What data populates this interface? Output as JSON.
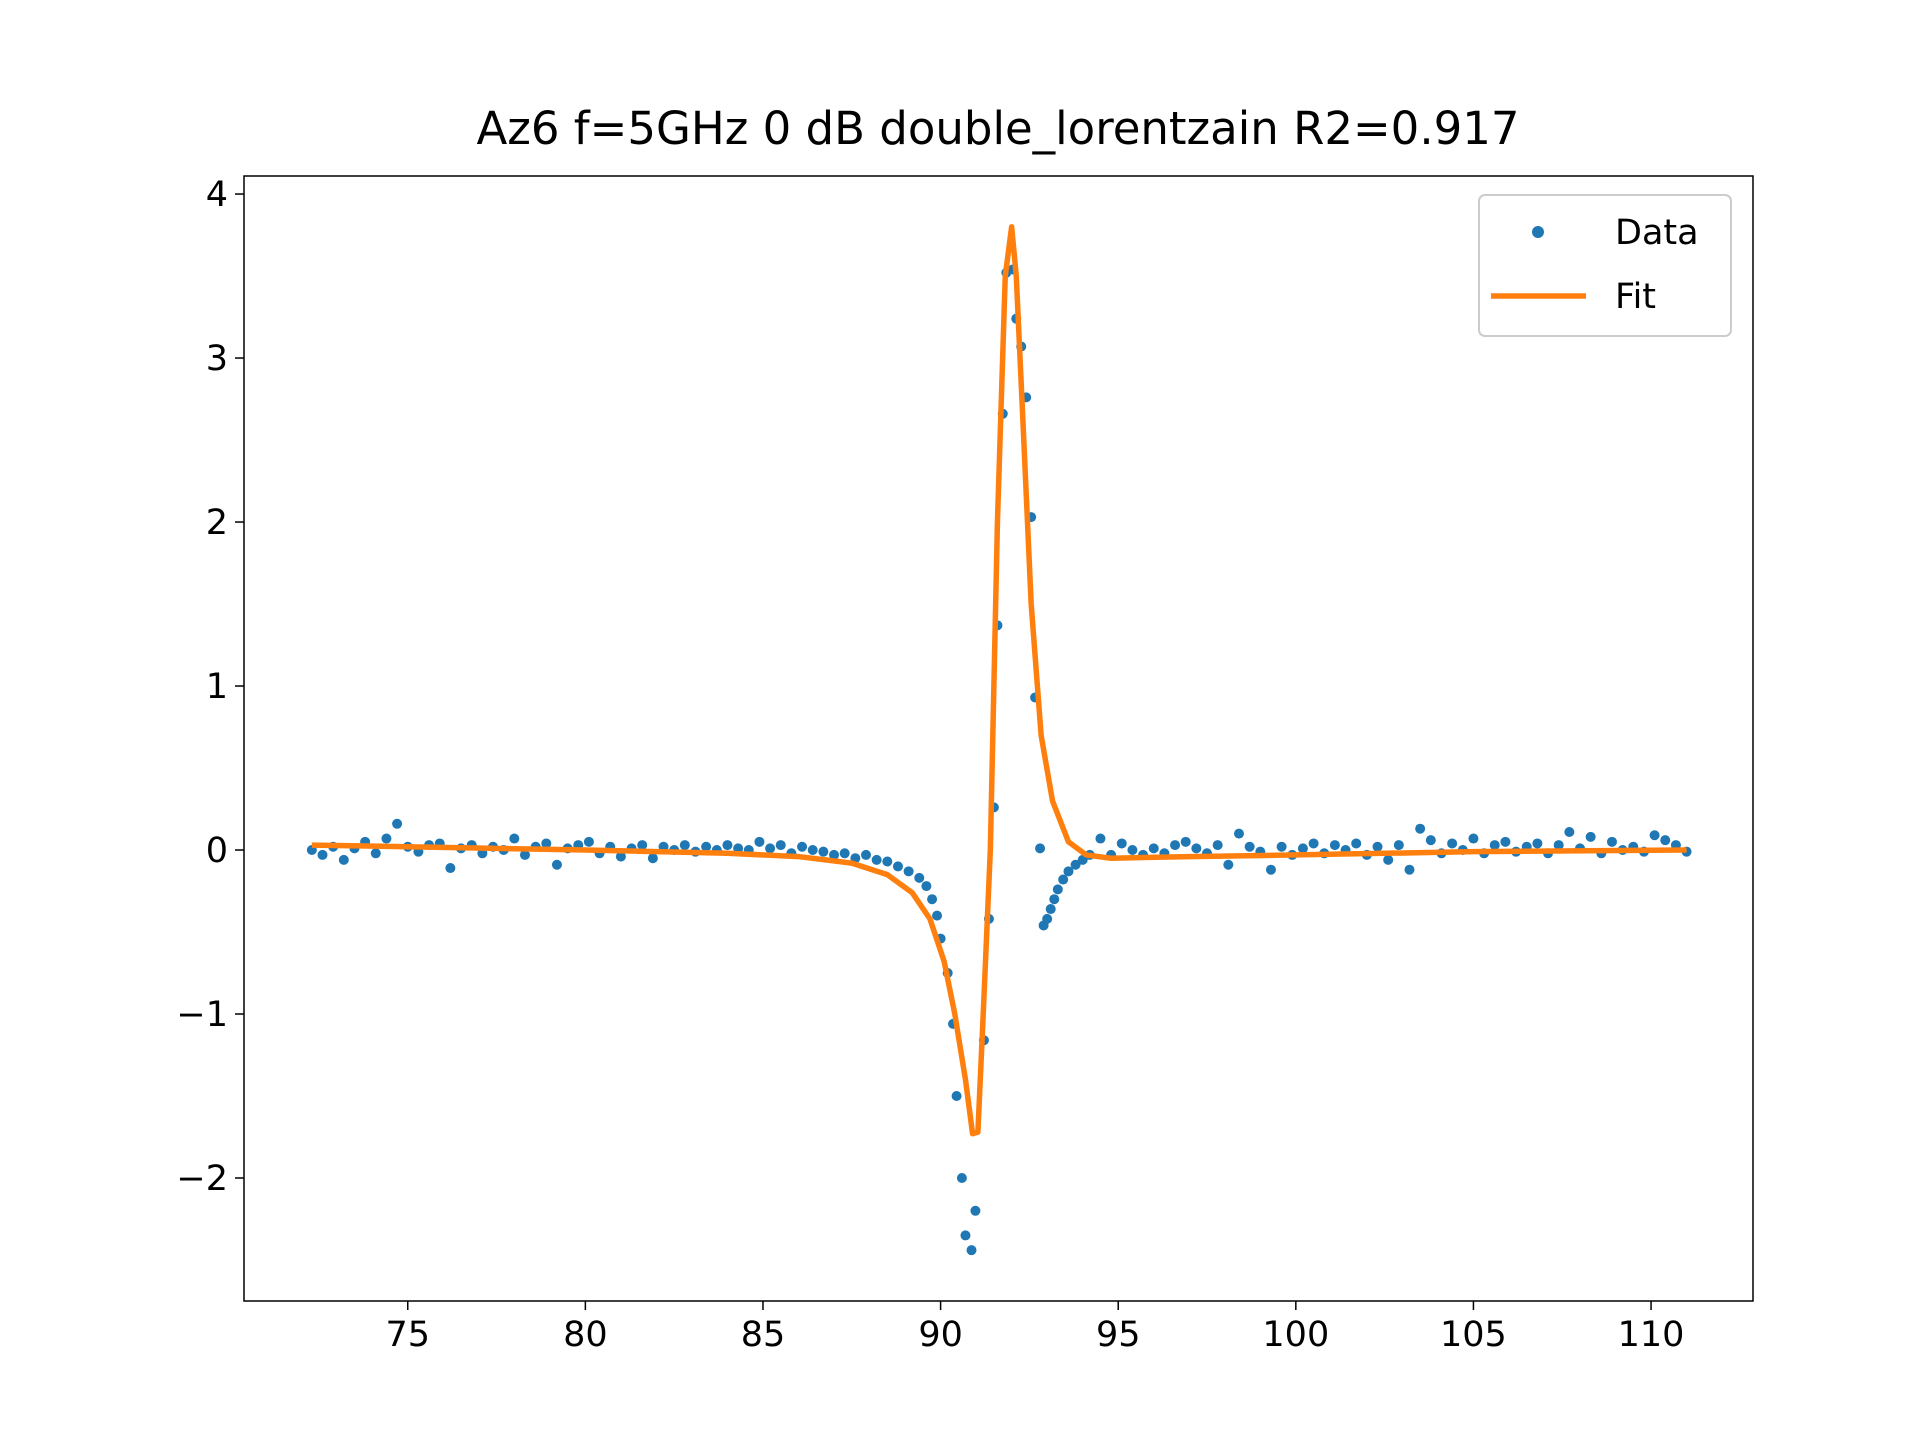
{
  "chart_data": {
    "type": "scatter",
    "title": "Az6 f=5GHz 0 dB double_lorentzain R2=0.917",
    "xlim": [
      70.39,
      112.87
    ],
    "ylim": [
      -2.75,
      4.11
    ],
    "xticks": [
      75,
      80,
      85,
      90,
      95,
      100,
      105,
      110
    ],
    "yticks": [
      {
        "value": -2,
        "label": "−2"
      },
      {
        "value": -1,
        "label": "−1"
      },
      0,
      1,
      2,
      3,
      4
    ],
    "grid": false,
    "legend": "upper right",
    "series": [
      {
        "name": "Data",
        "color": "#1f77b4",
        "style": "markers",
        "x": [
          72.3,
          72.6,
          72.9,
          73.2,
          73.5,
          73.8,
          74.1,
          74.4,
          74.7,
          75.0,
          75.3,
          75.6,
          75.9,
          76.2,
          76.5,
          76.8,
          77.1,
          77.4,
          77.7,
          78.0,
          78.3,
          78.6,
          78.9,
          79.2,
          79.5,
          79.8,
          80.1,
          80.4,
          80.7,
          81.0,
          81.3,
          81.6,
          81.9,
          82.2,
          82.5,
          82.8,
          83.1,
          83.4,
          83.7,
          84.0,
          84.3,
          84.6,
          84.9,
          85.2,
          85.5,
          85.8,
          86.1,
          86.4,
          86.7,
          87.0,
          87.3,
          87.6,
          87.9,
          88.2,
          88.5,
          88.8,
          89.1,
          89.4,
          89.6,
          89.76,
          89.9,
          90.0,
          90.2,
          90.35,
          90.45,
          90.6,
          90.7,
          90.87,
          90.98,
          91.22,
          91.36,
          91.5,
          91.6,
          91.75,
          91.85,
          92.03,
          92.13,
          92.27,
          92.41,
          92.55,
          92.66,
          92.8,
          92.9,
          93.0,
          93.1,
          93.2,
          93.3,
          93.45,
          93.6,
          93.8,
          94.0,
          94.2,
          94.5,
          94.8,
          95.1,
          95.4,
          95.7,
          96.0,
          96.3,
          96.6,
          96.9,
          97.2,
          97.5,
          97.8,
          98.1,
          98.4,
          98.7,
          99.0,
          99.3,
          99.6,
          99.9,
          100.2,
          100.5,
          100.8,
          101.1,
          101.4,
          101.7,
          102.0,
          102.3,
          102.6,
          102.9,
          103.2,
          103.5,
          103.8,
          104.1,
          104.4,
          104.7,
          105.0,
          105.3,
          105.6,
          105.9,
          106.2,
          106.5,
          106.8,
          107.1,
          107.4,
          107.7,
          108.0,
          108.3,
          108.6,
          108.9,
          109.2,
          109.5,
          109.8,
          110.1,
          110.4,
          110.7,
          111.0
        ],
        "values": [
          0.0,
          -0.03,
          0.02,
          -0.06,
          0.01,
          0.05,
          -0.02,
          0.07,
          0.16,
          0.02,
          -0.01,
          0.03,
          0.04,
          -0.11,
          0.01,
          0.03,
          -0.02,
          0.02,
          0.0,
          0.07,
          -0.03,
          0.02,
          0.04,
          -0.09,
          0.01,
          0.03,
          0.05,
          -0.02,
          0.02,
          -0.04,
          0.01,
          0.03,
          -0.05,
          0.02,
          0.0,
          0.03,
          -0.01,
          0.02,
          0.0,
          0.03,
          0.01,
          0.0,
          0.05,
          0.01,
          0.03,
          -0.02,
          0.02,
          0.0,
          -0.01,
          -0.03,
          -0.02,
          -0.05,
          -0.03,
          -0.06,
          -0.07,
          -0.1,
          -0.13,
          -0.17,
          -0.22,
          -0.3,
          -0.4,
          -0.54,
          -0.75,
          -1.06,
          -1.5,
          -2.0,
          -2.35,
          -2.44,
          -2.2,
          -1.16,
          -0.42,
          0.26,
          1.37,
          2.66,
          3.52,
          3.54,
          3.24,
          3.07,
          2.76,
          2.03,
          0.93,
          0.01,
          -0.46,
          -0.42,
          -0.36,
          -0.3,
          -0.24,
          -0.18,
          -0.13,
          -0.09,
          -0.06,
          -0.03,
          0.07,
          -0.03,
          0.04,
          0.0,
          -0.03,
          0.01,
          -0.02,
          0.03,
          0.05,
          0.01,
          -0.02,
          0.03,
          -0.09,
          0.1,
          0.02,
          -0.01,
          -0.12,
          0.02,
          -0.03,
          0.01,
          0.04,
          -0.02,
          0.03,
          0.0,
          0.04,
          -0.03,
          0.02,
          -0.06,
          0.03,
          -0.12,
          0.13,
          0.06,
          -0.02,
          0.04,
          0.0,
          0.07,
          -0.02,
          0.03,
          0.05,
          -0.01,
          0.02,
          0.04,
          -0.02,
          0.03,
          0.11,
          0.01,
          0.08,
          -0.02,
          0.05,
          0.0,
          0.02,
          -0.01,
          0.09,
          0.06,
          0.03,
          -0.01
        ]
      },
      {
        "name": "Fit",
        "color": "#ff7f0e",
        "style": "line",
        "x": [
          72.3,
          75,
          80,
          84,
          86,
          87.5,
          88.5,
          89.2,
          89.7,
          90.1,
          90.4,
          90.7,
          90.9,
          91.05,
          91.2,
          91.4,
          91.6,
          91.82,
          92.0,
          92.13,
          92.3,
          92.55,
          92.83,
          93.15,
          93.6,
          94.1,
          94.8,
          97,
          100,
          105,
          111
        ],
        "values": [
          0.03,
          0.02,
          0.0,
          -0.02,
          -0.04,
          -0.08,
          -0.15,
          -0.26,
          -0.42,
          -0.68,
          -1.0,
          -1.4,
          -1.73,
          -1.72,
          -1.0,
          0.0,
          2.0,
          3.5,
          3.8,
          3.5,
          2.7,
          1.5,
          0.7,
          0.3,
          0.05,
          -0.03,
          -0.05,
          -0.04,
          -0.03,
          -0.01,
          0.0
        ]
      }
    ]
  }
}
